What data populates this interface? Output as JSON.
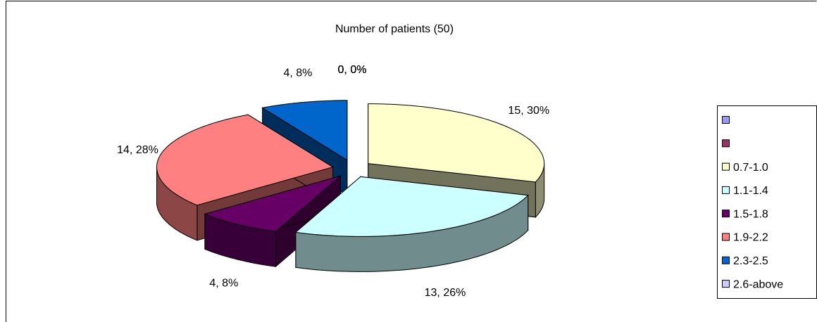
{
  "chart_data": {
    "type": "pie3d",
    "title": "Number of patients (50)",
    "categories": [
      null,
      null,
      "0.7-1.0",
      "1.1-1.4",
      "1.5-1.8",
      "1.9-2.2",
      "2.3-2.5",
      "2.6-above"
    ],
    "values": [
      0,
      0,
      15,
      13,
      4,
      14,
      4,
      0
    ],
    "value_labels": [
      "0, 0%",
      "0, 0%",
      "15, 30%",
      "13, 26%",
      "4, 8%",
      "14, 28%",
      "4, 8%",
      "0, 0%"
    ],
    "colors": [
      "#9999ff",
      "#993366",
      "#ffffcc",
      "#ccffff",
      "#660066",
      "#ff8080",
      "#0066cc",
      "#ccccff"
    ],
    "legend": "right"
  }
}
